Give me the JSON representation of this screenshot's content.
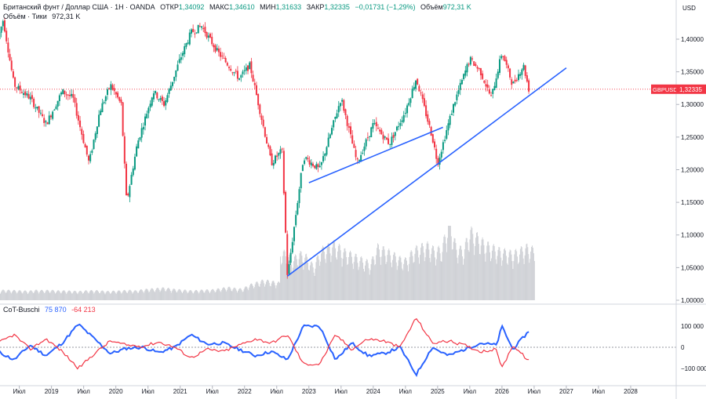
{
  "header": {
    "instrument": "Британский фунт / Доллар США · 1Н · OANDA",
    "open_label": "ОТКР",
    "open_value": "1,34092",
    "high_label": "МАКС",
    "high_value": "1,34610",
    "low_label": "МИН",
    "low_value": "1,31633",
    "close_label": "ЗАКР",
    "close_value": "1,32335",
    "change_value": "−0,01731 (−1,29%)",
    "volume_label": "Объём",
    "volume_value": "972,31 K",
    "ticks_label": "Объём · Тики",
    "ticks_value": "972,31 K"
  },
  "currency": "USD",
  "price_tag": {
    "symbol": "GBPUSD",
    "value": "1,32335",
    "price": 1.32335
  },
  "cot": {
    "name": "CoT-Buschi",
    "value_blue": "75 870",
    "value_red": "-64 213"
  },
  "colors": {
    "up": "#089981",
    "down": "#f23645",
    "trend": "#2962ff",
    "cot_blue": "#2962ff",
    "cot_red": "#f23645",
    "volume": "#c8cacf"
  },
  "chart_data": [
    {
      "type": "candlestick",
      "title": "Британский фунт / Доллар США · 1Н · OANDA",
      "y_ticks": [
        "1,40000",
        "1,35000",
        "1,30000",
        "1,25000",
        "1,20000",
        "1,15000",
        "1,10000",
        "1,05000",
        "1,00000"
      ],
      "ylim": [
        1.0,
        1.43
      ],
      "x_ticks": [
        "Июл",
        "2019",
        "Июл",
        "2020",
        "Июл",
        "2021",
        "Июл",
        "2022",
        "Июл",
        "2023",
        "Июл",
        "2024",
        "Июл",
        "2025",
        "Июл",
        "2026",
        "Июл",
        "2027",
        "Июл",
        "2028"
      ],
      "price_path": [
        [
          "2018-03",
          1.4
        ],
        [
          "2018-04",
          1.43
        ],
        [
          "2018-06",
          1.33
        ],
        [
          "2018-09",
          1.31
        ],
        [
          "2018-12",
          1.27
        ],
        [
          "2019-03",
          1.32
        ],
        [
          "2019-05",
          1.31
        ],
        [
          "2019-08",
          1.21
        ],
        [
          "2019-10",
          1.29
        ],
        [
          "2019-12",
          1.33
        ],
        [
          "2020-02",
          1.3
        ],
        [
          "2020-03",
          1.15
        ],
        [
          "2020-05",
          1.24
        ],
        [
          "2020-08",
          1.32
        ],
        [
          "2020-10",
          1.3
        ],
        [
          "2021-01",
          1.37
        ],
        [
          "2021-03",
          1.41
        ],
        [
          "2021-05",
          1.42
        ],
        [
          "2021-08",
          1.38
        ],
        [
          "2021-12",
          1.34
        ],
        [
          "2022-02",
          1.36
        ],
        [
          "2022-06",
          1.21
        ],
        [
          "2022-08",
          1.23
        ],
        [
          "2022-09",
          1.035
        ],
        [
          "2022-12",
          1.22
        ],
        [
          "2023-03",
          1.2
        ],
        [
          "2023-07",
          1.31
        ],
        [
          "2023-10",
          1.21
        ],
        [
          "2024-01",
          1.27
        ],
        [
          "2024-04",
          1.24
        ],
        [
          "2024-07",
          1.29
        ],
        [
          "2024-09",
          1.34
        ],
        [
          "2024-12",
          1.25
        ],
        [
          "2025-01",
          1.21
        ],
        [
          "2025-04",
          1.3
        ],
        [
          "2025-07",
          1.37
        ],
        [
          "2025-09",
          1.35
        ],
        [
          "2025-11",
          1.31
        ],
        [
          "2026-01",
          1.38
        ],
        [
          "2026-03",
          1.33
        ],
        [
          "2026-05",
          1.36
        ],
        [
          "2026-06",
          1.32335
        ]
      ],
      "trend_lines": [
        {
          "from": [
            "2023-01",
            1.18
          ],
          "to": [
            "2025-02",
            1.265
          ]
        },
        {
          "from": [
            "2022-09",
            1.037
          ],
          "to": [
            "2027-01",
            1.356
          ]
        }
      ],
      "volume_ticks_k": [
        170,
        170,
        165,
        160,
        155,
        170,
        165,
        170,
        160,
        160,
        155,
        150,
        160,
        165,
        160,
        150,
        155,
        160,
        170,
        160,
        180,
        190,
        200,
        210,
        190,
        180,
        170,
        160,
        170,
        175,
        180,
        200,
        220,
        200,
        190,
        260,
        300,
        340,
        320,
        300,
        280,
        240,
        280,
        260,
        200,
        300,
        320,
        340,
        300,
        280,
        260,
        240,
        220,
        320,
        300,
        280,
        250,
        240,
        300,
        320,
        330,
        300,
        310,
        480,
        320,
        300,
        420,
        380,
        340,
        320,
        300,
        290,
        280,
        300,
        320,
        300
      ]
    },
    {
      "type": "line",
      "title": "CoT-Buschi",
      "y_ticks": [
        "100000",
        "0",
        "-100000"
      ],
      "ylim": [
        -160000,
        160000
      ],
      "series": [
        {
          "name": "",
          "color": "#2962ff",
          "points": [
            [
              "2018-03",
              -20000
            ],
            [
              "2018-06",
              -60000
            ],
            [
              "2018-09",
              10000
            ],
            [
              "2018-12",
              -40000
            ],
            [
              "2019-03",
              20000
            ],
            [
              "2019-06",
              110000
            ],
            [
              "2019-09",
              40000
            ],
            [
              "2019-12",
              -30000
            ],
            [
              "2020-03",
              -5000
            ],
            [
              "2020-06",
              0
            ],
            [
              "2020-09",
              -25000
            ],
            [
              "2020-12",
              0
            ],
            [
              "2021-03",
              60000
            ],
            [
              "2021-06",
              15000
            ],
            [
              "2021-09",
              20000
            ],
            [
              "2021-12",
              -10000
            ],
            [
              "2022-03",
              -40000
            ],
            [
              "2022-06",
              -20000
            ],
            [
              "2022-09",
              -60000
            ],
            [
              "2022-12",
              100000
            ],
            [
              "2023-03",
              100000
            ],
            [
              "2023-06",
              -60000
            ],
            [
              "2023-09",
              20000
            ],
            [
              "2023-12",
              -40000
            ],
            [
              "2024-03",
              -30000
            ],
            [
              "2024-06",
              0
            ],
            [
              "2024-09",
              -130000
            ],
            [
              "2024-12",
              0
            ],
            [
              "2025-03",
              -40000
            ],
            [
              "2025-06",
              -10000
            ],
            [
              "2025-09",
              20000
            ],
            [
              "2025-12",
              10000
            ],
            [
              "2026-01",
              100000
            ],
            [
              "2026-03",
              -10000
            ],
            [
              "2026-06",
              75870
            ]
          ]
        },
        {
          "name": "",
          "color": "#f23645",
          "points": [
            [
              "2018-03",
              20000
            ],
            [
              "2018-06",
              60000
            ],
            [
              "2018-09",
              -10000
            ],
            [
              "2018-12",
              40000
            ],
            [
              "2019-03",
              -20000
            ],
            [
              "2019-06",
              -100000
            ],
            [
              "2019-09",
              -30000
            ],
            [
              "2019-12",
              30000
            ],
            [
              "2020-03",
              10000
            ],
            [
              "2020-06",
              5000
            ],
            [
              "2020-09",
              25000
            ],
            [
              "2020-12",
              0
            ],
            [
              "2021-03",
              -50000
            ],
            [
              "2021-06",
              -10000
            ],
            [
              "2021-09",
              -20000
            ],
            [
              "2021-12",
              10000
            ],
            [
              "2022-03",
              40000
            ],
            [
              "2022-06",
              20000
            ],
            [
              "2022-09",
              60000
            ],
            [
              "2022-12",
              -80000
            ],
            [
              "2023-03",
              -80000
            ],
            [
              "2023-06",
              60000
            ],
            [
              "2023-09",
              -10000
            ],
            [
              "2023-12",
              40000
            ],
            [
              "2024-03",
              30000
            ],
            [
              "2024-06",
              0
            ],
            [
              "2024-09",
              140000
            ],
            [
              "2024-12",
              20000
            ],
            [
              "2025-03",
              30000
            ],
            [
              "2025-06",
              10000
            ],
            [
              "2025-09",
              -20000
            ],
            [
              "2025-12",
              -10000
            ],
            [
              "2026-01",
              -100000
            ],
            [
              "2026-03",
              10000
            ],
            [
              "2026-06",
              -64213
            ]
          ]
        }
      ]
    }
  ]
}
